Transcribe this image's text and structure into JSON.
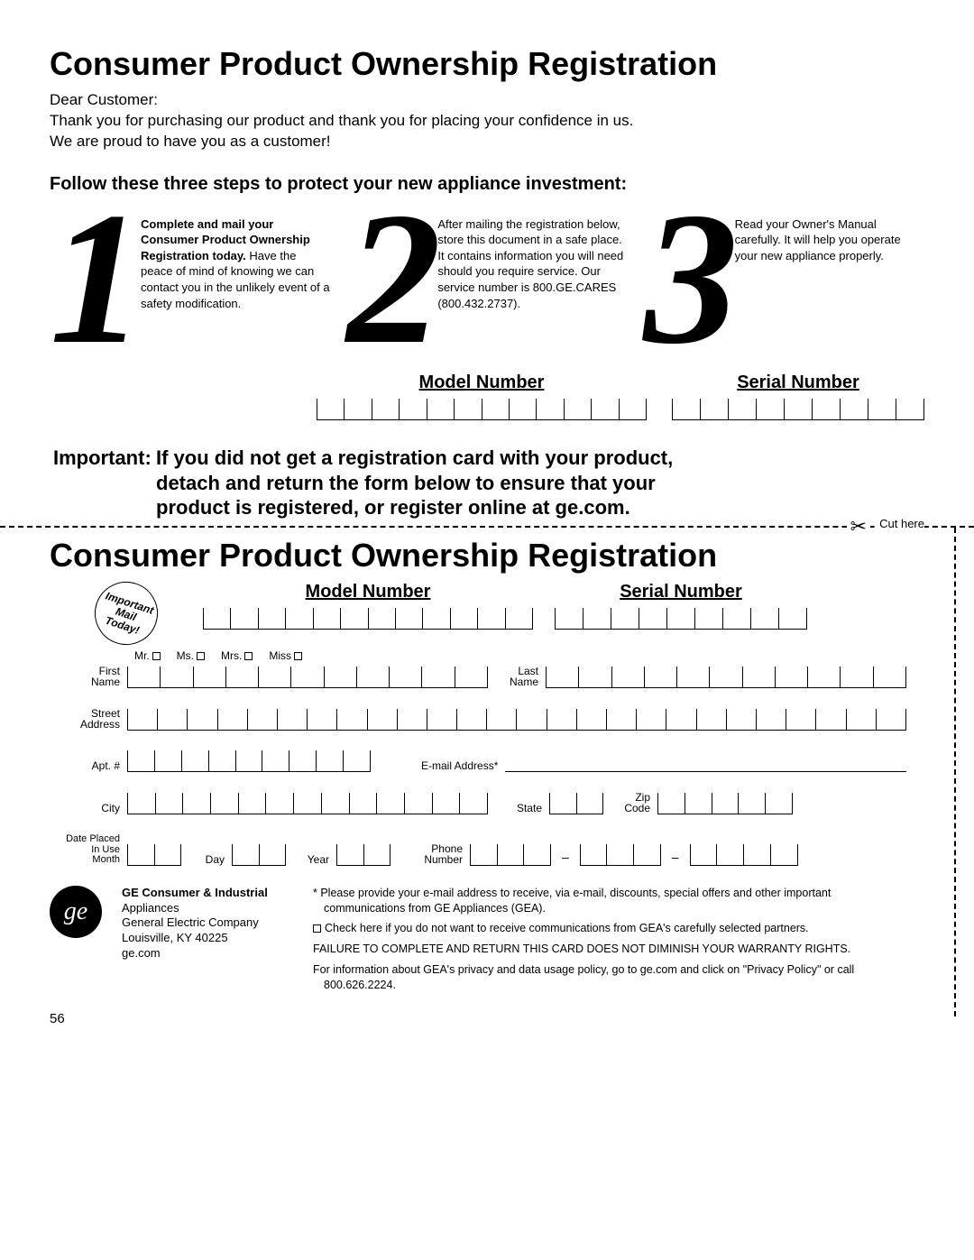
{
  "title": "Consumer Product Ownership Registration",
  "greeting": "Dear Customer:",
  "intro_l1": "Thank you for purchasing our product and thank you for placing your confidence in us.",
  "intro_l2": "We are proud to have you as a customer!",
  "subhead": "Follow these three steps to protect your new appliance investment:",
  "step1_bold": "Complete and mail your Consumer Product Ownership Registration today.",
  "step1_rest": " Have the peace of mind of knowing we can contact you in the unlikely event of a safety modification.",
  "step2": "After mailing the registration below, store this document in a safe place. It contains information you will need should you require service. Our service number is 800.GE.CARES (800.432.2737).",
  "step3": "Read your Owner's Manual carefully. It will help you operate your new appliance properly.",
  "model_label": "Model Number",
  "serial_label": "Serial Number",
  "important_label": "Important:",
  "important_text": "If you did not get a registration card with your product, detach and return the form below to ensure that your product is registered, or register online at ge.com.",
  "cut_here": "Cut here",
  "title2": "Consumer Product Ownership Registration",
  "stamp_l1": "Important",
  "stamp_l2": "Mail",
  "stamp_l3": "Today!",
  "titles": {
    "mr": "Mr.",
    "ms": "Ms.",
    "mrs": "Mrs.",
    "miss": "Miss"
  },
  "labels": {
    "first_name": "First\nName",
    "last_name": "Last\nName",
    "street": "Street\nAddress",
    "apt": "Apt. #",
    "email": "E-mail Address*",
    "city": "City",
    "state": "State",
    "zip": "Zip\nCode",
    "date": "Date Placed\nIn Use\nMonth",
    "day": "Day",
    "year": "Year",
    "phone": "Phone\nNumber"
  },
  "footer": {
    "company_bold": "GE Consumer & Industrial",
    "company_l1": "Appliances",
    "company_l2": "General Electric Company",
    "company_l3": "Louisville, KY 40225",
    "company_l4": "ge.com",
    "note_email": "* Please provide your e-mail address to receive, via e-mail, discounts, special offers and other important communications from GE Appliances (GEA).",
    "note_optout": "Check here if you do not want to receive communications from GEA's carefully selected partners.",
    "note_warranty": "FAILURE TO COMPLETE AND RETURN THIS CARD DOES NOT DIMINISH YOUR WARRANTY RIGHTS.",
    "note_privacy": "For information about GEA's privacy and data usage policy, go to ge.com and click on \"Privacy Policy\" or call 800.626.2224."
  },
  "page": "56",
  "counts": {
    "model": 12,
    "serial": 9,
    "name": 11,
    "street": 26,
    "apt": 9,
    "city": 13,
    "state": 2,
    "zip": 5,
    "month": 2,
    "day": 2,
    "year": 2,
    "phone1": 3,
    "phone2": 3,
    "phone3": 4
  }
}
